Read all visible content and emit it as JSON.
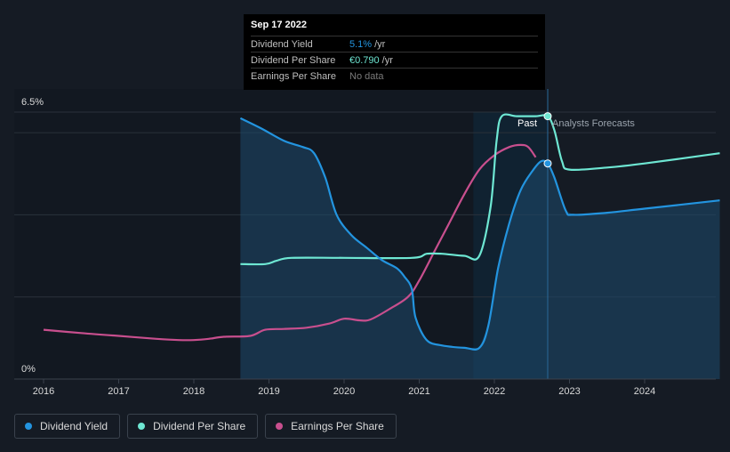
{
  "chart_data": {
    "type": "line",
    "y_top_label": "6.5%",
    "y_bottom_label": "0%",
    "ylim": [
      0,
      6.5
    ],
    "xlim": [
      2015.8,
      2025.0
    ],
    "x_ticks": [
      "2016",
      "2017",
      "2018",
      "2019",
      "2020",
      "2021",
      "2022",
      "2023",
      "2024"
    ],
    "past_label": "Past",
    "forecast_label": "Analysts Forecasts",
    "past_boundary_x": 2022.71,
    "shaded_start_x": 2021.72,
    "series": [
      {
        "name": "Dividend Yield",
        "color": "#2394df",
        "points": [
          [
            2018.62,
            6.35
          ],
          [
            2018.9,
            6.1
          ],
          [
            2019.2,
            5.8
          ],
          [
            2019.45,
            5.65
          ],
          [
            2019.6,
            5.5
          ],
          [
            2019.75,
            4.9
          ],
          [
            2019.9,
            4.0
          ],
          [
            2020.1,
            3.5
          ],
          [
            2020.3,
            3.2
          ],
          [
            2020.5,
            2.9
          ],
          [
            2020.7,
            2.7
          ],
          [
            2020.8,
            2.5
          ],
          [
            2020.9,
            2.2
          ],
          [
            2020.95,
            1.5
          ],
          [
            2021.1,
            0.95
          ],
          [
            2021.3,
            0.82
          ],
          [
            2021.6,
            0.76
          ],
          [
            2021.8,
            0.76
          ],
          [
            2021.92,
            1.3
          ],
          [
            2022.05,
            2.7
          ],
          [
            2022.2,
            3.8
          ],
          [
            2022.35,
            4.6
          ],
          [
            2022.5,
            5.05
          ],
          [
            2022.62,
            5.3
          ],
          [
            2022.71,
            5.25
          ],
          [
            2022.8,
            4.9
          ],
          [
            2022.95,
            4.1
          ],
          [
            2023.05,
            4.0
          ],
          [
            2023.5,
            4.05
          ],
          [
            2024.0,
            4.15
          ],
          [
            2025.0,
            4.35
          ]
        ]
      },
      {
        "name": "Dividend Per Share",
        "color": "#6ee7d3",
        "points": [
          [
            2018.62,
            2.8
          ],
          [
            2018.95,
            2.8
          ],
          [
            2019.1,
            2.88
          ],
          [
            2019.3,
            2.95
          ],
          [
            2020.0,
            2.95
          ],
          [
            2020.9,
            2.95
          ],
          [
            2021.1,
            3.05
          ],
          [
            2021.3,
            3.05
          ],
          [
            2021.6,
            3.0
          ],
          [
            2021.8,
            3.0
          ],
          [
            2021.95,
            4.2
          ],
          [
            2022.03,
            5.8
          ],
          [
            2022.1,
            6.4
          ],
          [
            2022.3,
            6.4
          ],
          [
            2022.55,
            6.4
          ],
          [
            2022.71,
            6.4
          ],
          [
            2022.8,
            6.05
          ],
          [
            2022.9,
            5.3
          ],
          [
            2023.0,
            5.1
          ],
          [
            2023.5,
            5.15
          ],
          [
            2024.0,
            5.25
          ],
          [
            2025.0,
            5.5
          ]
        ]
      },
      {
        "name": "Earnings Per Share",
        "color": "#c84f8e",
        "points": [
          [
            2016.0,
            1.2
          ],
          [
            2016.5,
            1.12
          ],
          [
            2017.0,
            1.05
          ],
          [
            2017.5,
            0.98
          ],
          [
            2017.8,
            0.95
          ],
          [
            2018.0,
            0.95
          ],
          [
            2018.2,
            0.98
          ],
          [
            2018.4,
            1.03
          ],
          [
            2018.75,
            1.05
          ],
          [
            2018.95,
            1.2
          ],
          [
            2019.2,
            1.22
          ],
          [
            2019.5,
            1.25
          ],
          [
            2019.8,
            1.35
          ],
          [
            2020.0,
            1.47
          ],
          [
            2020.2,
            1.43
          ],
          [
            2020.35,
            1.45
          ],
          [
            2020.6,
            1.7
          ],
          [
            2020.85,
            2.0
          ],
          [
            2021.0,
            2.4
          ],
          [
            2021.2,
            3.1
          ],
          [
            2021.4,
            3.8
          ],
          [
            2021.6,
            4.5
          ],
          [
            2021.8,
            5.1
          ],
          [
            2022.0,
            5.45
          ],
          [
            2022.2,
            5.65
          ],
          [
            2022.35,
            5.7
          ],
          [
            2022.45,
            5.65
          ],
          [
            2022.55,
            5.4
          ]
        ]
      }
    ],
    "tooltip": {
      "date": "Sep 17 2022",
      "dividend_yield_label": "Dividend Yield",
      "dividend_yield_value": "5.1%",
      "dividend_yield_unit": "/yr",
      "dps_label": "Dividend Per Share",
      "dps_value": "€0.790",
      "dps_unit": "/yr",
      "eps_label": "Earnings Per Share",
      "eps_value": "No data"
    },
    "legend": [
      {
        "label": "Dividend Yield",
        "color": "#2394df"
      },
      {
        "label": "Dividend Per Share",
        "color": "#6ee7d3"
      },
      {
        "label": "Earnings Per Share",
        "color": "#c84f8e"
      }
    ]
  }
}
